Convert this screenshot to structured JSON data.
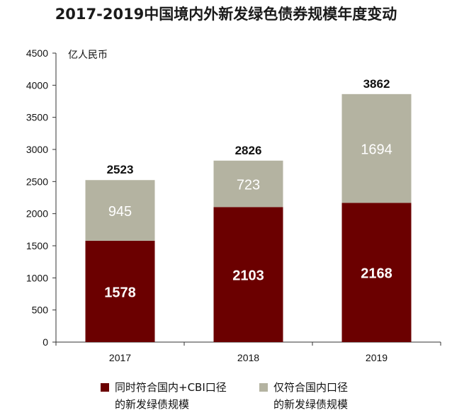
{
  "title": "2017-2019中国境内外新发绿色债券规模年度变动",
  "colors": {
    "series1": "#6b0000",
    "series2": "#b4b3a1",
    "axis": "#333333"
  },
  "chart_data": {
    "type": "bar",
    "stacked": true,
    "categories": [
      "2017",
      "2018",
      "2019"
    ],
    "series": [
      {
        "name": "同时符合国内+CBI口径的新发绿债规模",
        "values": [
          1578,
          2103,
          2168
        ]
      },
      {
        "name": "仅符合国内口径的新发绿债规模",
        "values": [
          945,
          723,
          1694
        ]
      }
    ],
    "totals": [
      2523,
      2826,
      3862
    ],
    "ylabel": "亿人民币",
    "ylim": [
      0,
      4500
    ],
    "yticks": [
      0,
      500,
      1000,
      1500,
      2000,
      2500,
      3000,
      3500,
      4000,
      4500
    ],
    "grid": false,
    "legend_position": "bottom"
  },
  "legend": {
    "item1": {
      "line1": "同时符合国内+CBI口径",
      "line2": "的新发绿债规模"
    },
    "item2": {
      "line1": "仅符合国内口径",
      "line2": "的新发绿债规模"
    }
  }
}
